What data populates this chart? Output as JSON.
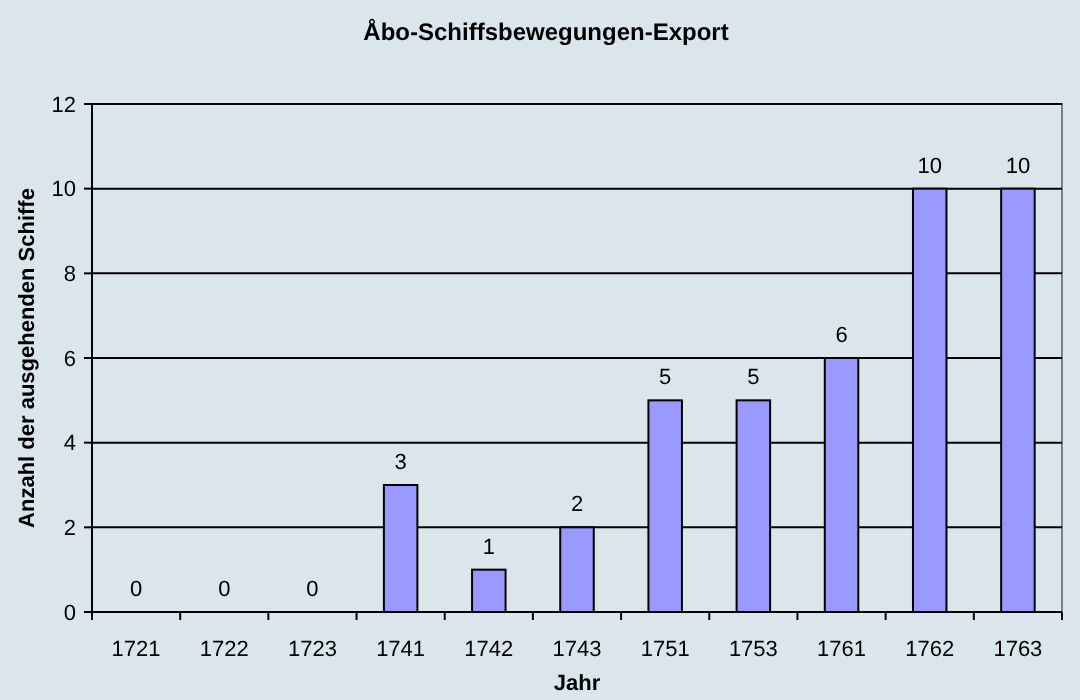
{
  "chart_data": {
    "type": "bar",
    "title": "Åbo-Schiffsbewegungen-Export",
    "xlabel": "Jahr",
    "ylabel": "Anzahl der ausgehenden Schiffe",
    "categories": [
      "1721",
      "1722",
      "1723",
      "1741",
      "1742",
      "1743",
      "1751",
      "1753",
      "1761",
      "1762",
      "1763"
    ],
    "values": [
      0,
      0,
      0,
      3,
      1,
      2,
      5,
      5,
      6,
      10,
      10
    ],
    "color": "#9999ff",
    "ylim": [
      0,
      12
    ],
    "yticks": [
      0,
      2,
      4,
      6,
      8,
      10,
      12
    ],
    "grid": "y",
    "data_labels": true
  }
}
